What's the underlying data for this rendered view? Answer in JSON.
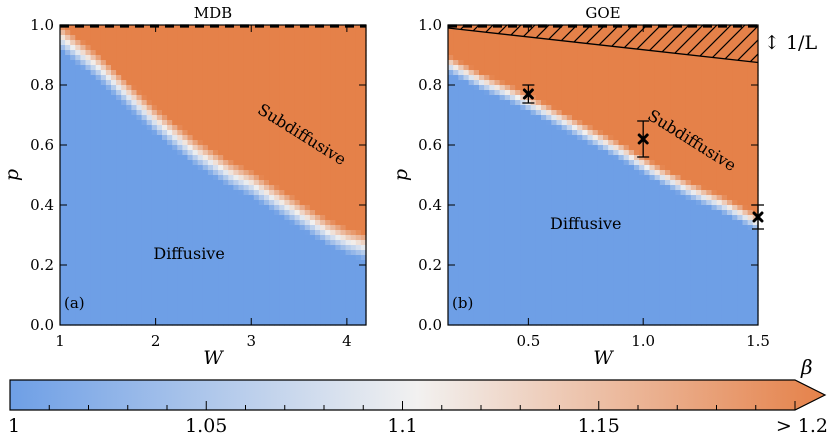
{
  "colors": {
    "low": "#6e9fe6",
    "mid": "#f2f1f0",
    "high": "#e58149"
  },
  "colorbar": {
    "label": "β",
    "ticks": [
      {
        "v": 1.0,
        "t": "1"
      },
      {
        "v": 1.05,
        "t": "1.05"
      },
      {
        "v": 1.1,
        "t": "1.1"
      },
      {
        "v": 1.15,
        "t": "1.15"
      },
      {
        "v": 1.2,
        "t": "> 1.2"
      }
    ],
    "min": 1.0,
    "max": 1.2
  },
  "chart_data": [
    {
      "type": "heatmap",
      "title": "MDB",
      "panel_label": "(a)",
      "xlabel": "W",
      "ylabel": "p",
      "xlim": [
        1,
        4.2
      ],
      "ylim": [
        0,
        1
      ],
      "xticks": [
        {
          "v": 1,
          "t": "1"
        },
        {
          "v": 2,
          "t": "2"
        },
        {
          "v": 3,
          "t": "3"
        },
        {
          "v": 4,
          "t": "4"
        }
      ],
      "yticks": [
        {
          "v": 0,
          "t": "0.0"
        },
        {
          "v": 0.2,
          "t": "0.2"
        },
        {
          "v": 0.4,
          "t": "0.4"
        },
        {
          "v": 0.6,
          "t": "0.6"
        },
        {
          "v": 0.8,
          "t": "0.8"
        },
        {
          "v": 1.0,
          "t": "1.0"
        }
      ],
      "boundary": {
        "W": [
          1.0,
          1.2,
          1.4,
          1.6,
          1.8,
          2.0,
          2.2,
          2.4,
          2.6,
          2.8,
          3.0,
          3.2,
          3.4,
          3.6,
          3.8,
          4.0,
          4.2
        ],
        "p": [
          0.96,
          0.91,
          0.86,
          0.8,
          0.74,
          0.68,
          0.63,
          0.58,
          0.54,
          0.5,
          0.47,
          0.43,
          0.39,
          0.35,
          0.31,
          0.28,
          0.26
        ]
      },
      "regions": [
        {
          "label": "Subdiffusive",
          "W": 3.5,
          "p": 0.62,
          "angle": 32
        },
        {
          "label": "Diffusive",
          "W": 2.35,
          "p": 0.22,
          "angle": 0
        }
      ]
    },
    {
      "type": "heatmap",
      "title": "GOE",
      "panel_label": "(b)",
      "xlabel": "W",
      "ylabel": "p",
      "xlim": [
        0.15,
        1.5
      ],
      "ylim": [
        0,
        1
      ],
      "xticks": [
        {
          "v": 0.5,
          "t": "0.5"
        },
        {
          "v": 1.0,
          "t": "1.0"
        },
        {
          "v": 1.5,
          "t": "1.5"
        }
      ],
      "yticks": [
        {
          "v": 0,
          "t": "0.0"
        },
        {
          "v": 0.2,
          "t": "0.2"
        },
        {
          "v": 0.4,
          "t": "0.4"
        },
        {
          "v": 0.6,
          "t": "0.6"
        },
        {
          "v": 0.8,
          "t": "0.8"
        },
        {
          "v": 1.0,
          "t": "1.0"
        }
      ],
      "boundary": {
        "W": [
          0.15,
          0.3,
          0.45,
          0.6,
          0.75,
          0.9,
          1.05,
          1.2,
          1.35,
          1.5
        ],
        "p": [
          0.87,
          0.81,
          0.76,
          0.7,
          0.64,
          0.58,
          0.51,
          0.45,
          0.4,
          0.34
        ]
      },
      "hatch_line": {
        "W": [
          0.15,
          1.5
        ],
        "p": [
          0.99,
          0.875
        ]
      },
      "hatch_label": "↕ 1/L",
      "points": [
        {
          "W": 0.5,
          "p": 0.77,
          "err": 0.03
        },
        {
          "W": 1.0,
          "p": 0.62,
          "err": 0.06
        },
        {
          "W": 1.5,
          "p": 0.36,
          "err": 0.04
        }
      ],
      "regions": [
        {
          "label": "Subdiffusive",
          "W": 1.2,
          "p": 0.6,
          "angle": 32
        },
        {
          "label": "Diffusive",
          "W": 0.75,
          "p": 0.32,
          "angle": 0
        }
      ]
    }
  ]
}
